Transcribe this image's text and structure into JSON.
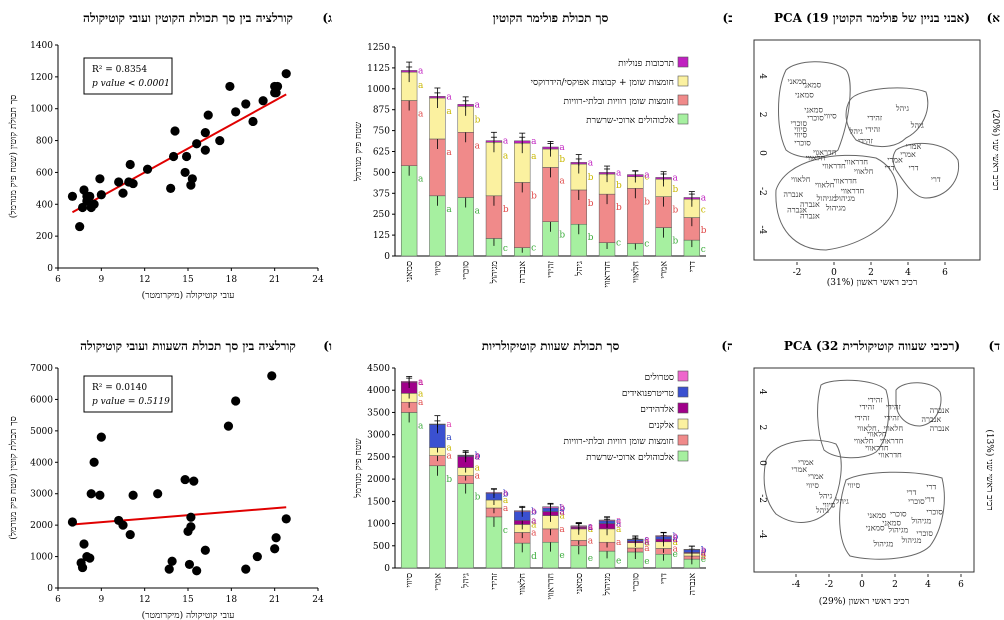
{
  "pca1": {
    "letter": "(א",
    "title": "PCA (19 אבני בניין של פולימר הקוטין)",
    "xlabel": "רכיב ראשי ראשון (31%)",
    "ylabel": "רכיב ראשי שני (20%)",
    "xticks": [
      "-2",
      "0",
      "2",
      "4",
      "6"
    ],
    "yticks": [
      "4",
      "2",
      "0",
      "-2",
      "-4"
    ],
    "points": [
      {
        "t": "סמאני",
        "x": -2.0,
        "y": 3.6
      },
      {
        "t": "סמאני",
        "x": -1.2,
        "y": 3.4
      },
      {
        "t": "סמאני",
        "x": -1.6,
        "y": 2.9
      },
      {
        "t": "סמאני",
        "x": -1.1,
        "y": 2.1
      },
      {
        "t": "סיווי",
        "x": -0.2,
        "y": 1.8
      },
      {
        "t": "סוכרי",
        "x": -1.0,
        "y": 1.7
      },
      {
        "t": "סוכרי",
        "x": -1.9,
        "y": 1.4
      },
      {
        "t": "סיווי",
        "x": -1.8,
        "y": 1.1
      },
      {
        "t": "סיווי",
        "x": -1.8,
        "y": 0.8
      },
      {
        "t": "סוכרי",
        "x": -1.7,
        "y": 0.4
      },
      {
        "t": "גיהל",
        "x": 3.7,
        "y": 2.2
      },
      {
        "t": "זהידי",
        "x": 2.2,
        "y": 1.7
      },
      {
        "t": "גיהל",
        "x": 4.5,
        "y": 1.3
      },
      {
        "t": "זהידי",
        "x": 2.1,
        "y": 1.1
      },
      {
        "t": "גיהל",
        "x": 1.2,
        "y": 1.0
      },
      {
        "t": "זהידי",
        "x": 1.7,
        "y": 0.5
      },
      {
        "t": "אמרי",
        "x": 4.3,
        "y": 0.2
      },
      {
        "t": "אמרי",
        "x": 4.0,
        "y": -0.2
      },
      {
        "t": "אמרי",
        "x": 3.3,
        "y": -0.5
      },
      {
        "t": "דרי",
        "x": 3.0,
        "y": -0.9
      },
      {
        "t": "דרי",
        "x": 4.3,
        "y": -0.9
      },
      {
        "t": "דרי",
        "x": 5.5,
        "y": -1.5
      },
      {
        "t": "חדראווי",
        "x": -0.5,
        "y": -0.1
      },
      {
        "t": "חדראווי",
        "x": 1.2,
        "y": -0.6
      },
      {
        "t": "חלאווי",
        "x": -1.0,
        "y": -0.4
      },
      {
        "t": "חדראווי",
        "x": 0.0,
        "y": -0.8
      },
      {
        "t": "חלאווי",
        "x": 1.6,
        "y": -1.1
      },
      {
        "t": "חלאווי",
        "x": -1.8,
        "y": -1.5
      },
      {
        "t": "חדראווי",
        "x": 0.6,
        "y": -1.6
      },
      {
        "t": "חלאווי",
        "x": -0.5,
        "y": -1.8
      },
      {
        "t": "חדראווי",
        "x": 1.0,
        "y": -2.1
      },
      {
        "t": "אנברה",
        "x": -2.2,
        "y": -2.3
      },
      {
        "t": "מגיהול",
        "x": 0.6,
        "y": -2.5
      },
      {
        "t": "מגיהול",
        "x": -0.4,
        "y": -2.5
      },
      {
        "t": "אנברה",
        "x": -1.3,
        "y": -2.8
      },
      {
        "t": "מגיהול",
        "x": 0.1,
        "y": -3.0
      },
      {
        "t": "אנברה",
        "x": -2.0,
        "y": -3.1
      },
      {
        "t": "אנברה",
        "x": -1.3,
        "y": -3.4
      }
    ]
  },
  "pca2": {
    "letter": "(ד",
    "title": "PCA (32 רכיבי שעווה קוטיקולרית)",
    "xlabel": "רכיב ראשי ראשון (29%)",
    "ylabel": "רכיב ראשי שני (13%)",
    "xticks": [
      "-4",
      "-2",
      "0",
      "2",
      "4",
      "6"
    ],
    "yticks": [
      "4",
      "2",
      "0",
      "-2",
      "-4"
    ],
    "points": [
      {
        "t": "זהידי",
        "x": 0.8,
        "y": 3.4
      },
      {
        "t": "זהידי",
        "x": 0.3,
        "y": 3.0
      },
      {
        "t": "זהידי",
        "x": 1.9,
        "y": 3.0
      },
      {
        "t": "זהידי",
        "x": 0.0,
        "y": 2.4
      },
      {
        "t": "זהידי",
        "x": 1.8,
        "y": 2.4
      },
      {
        "t": "חלאווי",
        "x": 0.3,
        "y": 1.8
      },
      {
        "t": "חלאווי",
        "x": 1.9,
        "y": 1.8
      },
      {
        "t": "חלאווי",
        "x": 0.9,
        "y": 1.5
      },
      {
        "t": "חלאווי",
        "x": 0.1,
        "y": 1.1
      },
      {
        "t": "חדראווי",
        "x": 1.8,
        "y": 1.1
      },
      {
        "t": "חדראווי",
        "x": 0.9,
        "y": 0.7
      },
      {
        "t": "חדראווי",
        "x": 1.7,
        "y": 0.3
      },
      {
        "t": "אנברה",
        "x": 4.7,
        "y": 2.8
      },
      {
        "t": "אנברה",
        "x": 4.2,
        "y": 2.3
      },
      {
        "t": "אנברה",
        "x": 4.7,
        "y": 1.8
      },
      {
        "t": "אמרי",
        "x": -3.4,
        "y": -0.1
      },
      {
        "t": "אמרי",
        "x": -3.8,
        "y": -0.5
      },
      {
        "t": "אמרי",
        "x": -2.8,
        "y": -0.9
      },
      {
        "t": "סיווי",
        "x": -3.0,
        "y": -1.4
      },
      {
        "t": "סיווי",
        "x": -0.5,
        "y": -1.4
      },
      {
        "t": "גיהל",
        "x": -2.2,
        "y": -2.0
      },
      {
        "t": "גיהל",
        "x": -1.2,
        "y": -2.3
      },
      {
        "t": "גיהל",
        "x": -2.4,
        "y": -2.8
      },
      {
        "t": "סיווי",
        "x": -2.0,
        "y": -2.5
      },
      {
        "t": "דרי",
        "x": 4.2,
        "y": -1.5
      },
      {
        "t": "דרי",
        "x": 3.0,
        "y": -1.8
      },
      {
        "t": "דרי",
        "x": 4.1,
        "y": -2.2
      },
      {
        "t": "סוכרי",
        "x": 3.3,
        "y": -2.3
      },
      {
        "t": "סוכרי",
        "x": 4.4,
        "y": -2.9
      },
      {
        "t": "סוכרי",
        "x": 2.2,
        "y": -3.0
      },
      {
        "t": "סמאני",
        "x": 0.9,
        "y": -3.1
      },
      {
        "t": "מגיהול",
        "x": 3.6,
        "y": -3.4
      },
      {
        "t": "סמאני",
        "x": 1.8,
        "y": -3.5
      },
      {
        "t": "סמאני",
        "x": 0.8,
        "y": -3.8
      },
      {
        "t": "מגיהול",
        "x": 2.2,
        "y": -3.9
      },
      {
        "t": "סוכרי",
        "x": 3.8,
        "y": -4.1
      },
      {
        "t": "מגיהול",
        "x": 3.0,
        "y": -4.5
      },
      {
        "t": "מגיהול",
        "x": 1.3,
        "y": -4.7
      }
    ]
  },
  "chart_data": [
    {
      "type": "bar",
      "letter": "(ב",
      "title": "סך תכולת פולימר הקוטין",
      "ylabel": "שטח פיק מנורמל",
      "ylim": [
        0,
        1250
      ],
      "yticks": [
        0,
        125,
        250,
        375,
        500,
        625,
        750,
        875,
        1000,
        1125,
        1250
      ],
      "categories": [
        "סמאני",
        "סיווי",
        "סוכרי",
        "מגיהול",
        "אנברה",
        "זהידי",
        "גיהל",
        "חדראווי",
        "חלאווי",
        "אמרי",
        "דרי"
      ],
      "series": [
        {
          "name": "אלכוהולים ארוכי-שרשרת",
          "color": "#a6f0a0",
          "values": [
            540,
            360,
            350,
            105,
            50,
            205,
            190,
            80,
            75,
            170,
            95
          ],
          "labels": [
            "a",
            "a",
            "a",
            "c",
            "c",
            "b",
            "b",
            "c",
            "c",
            "b",
            "c"
          ],
          "lcolor": "#3fae3f"
        },
        {
          "name": "חומצות שומן רוויות ובלתי-רוויות",
          "color": "#f08a8a",
          "values": [
            390,
            340,
            390,
            255,
            390,
            325,
            205,
            290,
            330,
            185,
            135
          ],
          "labels": [
            "a",
            "a",
            "a",
            "b",
            "b",
            "a",
            "b",
            "b",
            "b",
            "b",
            "b"
          ],
          "lcolor": "#e04a4a"
        },
        {
          "name": "חומצות שומן + קבוצות אפוקסי/הידרוקסי",
          "color": "#fbf1a0",
          "values": [
            170,
            245,
            155,
            320,
            235,
            110,
            155,
            120,
            70,
            105,
            110
          ],
          "labels": [
            "a",
            "a",
            "b",
            "a",
            "a",
            "b",
            "b",
            "b",
            "c",
            "b",
            "c"
          ],
          "lcolor": "#c9b800"
        },
        {
          "name": "תרכובות פנוליות",
          "color": "#c020c0",
          "values": [
            10,
            10,
            12,
            10,
            14,
            12,
            10,
            10,
            12,
            10,
            10
          ],
          "labels": [
            "a",
            "a",
            "a",
            "a",
            "a",
            "a",
            "a",
            "a",
            "a",
            "a",
            "a"
          ],
          "lcolor": "#c020c0"
        }
      ]
    },
    {
      "type": "scatter",
      "letter": "(ג",
      "title": "קורלציה בין סך תכולת הקוטין ועובי קוטיקולה",
      "xlabel": "עובי קוטיקולה (מיקרומטר)",
      "ylabel": "סך תכולת קוטין (שטח פיק מנורמל)",
      "xlim": [
        6,
        24
      ],
      "ylim": [
        0,
        1400
      ],
      "xticks": [
        6,
        9,
        12,
        15,
        18,
        21,
        24
      ],
      "yticks": [
        0,
        200,
        400,
        600,
        800,
        1000,
        1200,
        1400
      ],
      "r2_label": "R² = 0.8354",
      "p_label": "p value < 0.0001",
      "fit": [
        [
          7,
          350
        ],
        [
          21.8,
          1090
        ]
      ],
      "x": [
        7.0,
        7.5,
        7.7,
        7.8,
        8.0,
        8.0,
        8.2,
        8.3,
        8.5,
        8.9,
        9.0,
        10.2,
        10.5,
        10.9,
        11.0,
        11.2,
        12.2,
        13.8,
        14.0,
        14.1,
        14.8,
        14.9,
        15.2,
        15.3,
        15.6,
        16.2,
        16.2,
        16.4,
        17.2,
        17.9,
        18.3,
        19.0,
        19.5,
        20.2,
        21.0,
        21.0,
        21.1,
        21.2,
        21.8
      ],
      "y": [
        450,
        260,
        380,
        490,
        450,
        420,
        450,
        380,
        400,
        560,
        460,
        540,
        470,
        540,
        650,
        530,
        620,
        500,
        700,
        860,
        600,
        700,
        520,
        560,
        780,
        740,
        850,
        960,
        800,
        1140,
        980,
        1030,
        920,
        1050,
        1100,
        1140,
        1100,
        1140,
        1220
      ]
    },
    {
      "type": "bar",
      "letter": "(ה",
      "title": "סך תכולת שעוות קוטיקולריות",
      "ylabel": "שטח פיק מנורמל",
      "ylim": [
        0,
        4500
      ],
      "yticks": [
        0,
        500,
        1000,
        1500,
        2000,
        2500,
        3000,
        3500,
        4000,
        4500
      ],
      "categories": [
        "סיווי",
        "אמרי",
        "גיהל",
        "זהידי",
        "חלאווי",
        "חדראווי",
        "סמאני",
        "מגיהול",
        "סוכרי",
        "דרי",
        "אנברה"
      ],
      "series": [
        {
          "name": "אלכוהולים ארוכי-שרשרת",
          "color": "#a6f0a0",
          "values": [
            3500,
            2300,
            1900,
            1150,
            560,
            580,
            500,
            380,
            360,
            310,
            200
          ],
          "labels": [
            "a",
            "b",
            "b",
            "c",
            "d",
            "e",
            "e",
            "e",
            "e",
            "e",
            "e"
          ],
          "lcolor": "#3fae3f"
        },
        {
          "name": "חומצות שומן רוויות ובלתי-רוויות",
          "color": "#f08a8a",
          "values": [
            230,
            230,
            180,
            200,
            240,
            300,
            120,
            200,
            90,
            130,
            70
          ],
          "labels": [
            "a",
            "a",
            "a",
            "a",
            "a",
            "a",
            "a",
            "a",
            "a",
            "a",
            "a"
          ],
          "lcolor": "#e04a4a"
        },
        {
          "name": "אלקנים",
          "color": "#fbf1a0",
          "values": [
            200,
            180,
            180,
            180,
            180,
            300,
            260,
            300,
            120,
            150,
            60
          ],
          "labels": [
            "a",
            "a",
            "a",
            "a",
            "a",
            "a",
            "a",
            "a",
            "a",
            "a",
            "a"
          ],
          "lcolor": "#c9b800"
        },
        {
          "name": "אלדהידים",
          "color": "#a0008a",
          "values": [
            250,
            0,
            250,
            0,
            90,
            90,
            40,
            120,
            30,
            60,
            20
          ],
          "labels": [
            "a",
            "",
            "a",
            "",
            "a",
            "a",
            "a",
            "a",
            "a",
            "a",
            "a"
          ],
          "lcolor": "#a0008a"
        },
        {
          "name": "טריטרפנואידים",
          "color": "#3a50d0",
          "values": [
            0,
            520,
            20,
            150,
            200,
            80,
            10,
            60,
            40,
            60,
            60
          ],
          "labels": [
            "",
            "a",
            "b",
            "b",
            "b",
            "b",
            "c",
            "c",
            "c",
            "b",
            "b"
          ],
          "lcolor": "#2a40c0"
        },
        {
          "name": "סטרולים",
          "color": "#ee66cc",
          "values": [
            20,
            10,
            10,
            20,
            20,
            30,
            20,
            20,
            10,
            20,
            10
          ],
          "labels": [
            "a",
            "a",
            "a",
            "a",
            "a",
            "a",
            "a",
            "a",
            "a",
            "a",
            "a"
          ],
          "lcolor": "#e040b0"
        }
      ]
    },
    {
      "type": "scatter",
      "letter": "(ו",
      "title": "קורלציה בין סך תכולת השעוות ועובי קוטיקולה",
      "xlabel": "עובי קוטיקולה (מיקרומטר)",
      "ylabel": "סך תכולת קוטין (שטח פיק מנורמל)",
      "xlim": [
        6,
        24
      ],
      "ylim": [
        0,
        7000
      ],
      "xticks": [
        6,
        9,
        12,
        15,
        18,
        21,
        24
      ],
      "yticks": [
        0,
        1000,
        2000,
        3000,
        4000,
        5000,
        6000,
        7000
      ],
      "r2_label": "R² = 0.0140",
      "p_label": "p value = 0.5119",
      "fit": [
        [
          7,
          2020
        ],
        [
          21.8,
          2570
        ]
      ],
      "x": [
        7.0,
        7.6,
        7.7,
        7.8,
        8.0,
        8.2,
        8.3,
        8.5,
        8.9,
        9.0,
        10.2,
        10.5,
        11.0,
        11.2,
        12.9,
        13.7,
        13.9,
        14.8,
        15.0,
        15.1,
        15.2,
        15.2,
        15.4,
        15.6,
        16.2,
        17.8,
        18.3,
        19.0,
        19.8,
        20.8,
        21.0,
        21.1,
        21.8
      ],
      "y": [
        2100,
        800,
        650,
        1400,
        1000,
        950,
        3000,
        4000,
        2950,
        4800,
        2150,
        2000,
        1700,
        2950,
        3000,
        600,
        850,
        3450,
        1800,
        750,
        2250,
        1950,
        3400,
        550,
        1200,
        5150,
        5950,
        600,
        1000,
        6750,
        1250,
        1600,
        2200
      ]
    }
  ]
}
